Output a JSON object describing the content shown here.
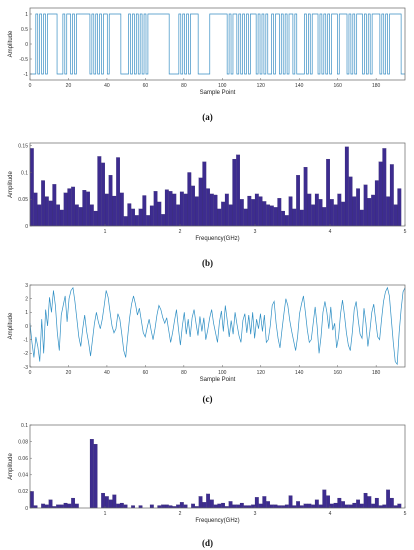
{
  "chart_data": [
    {
      "id": "a",
      "type": "line",
      "caption": "(a)",
      "xlabel": "Sample Point",
      "ylabel": "Amplitude",
      "xlim": [
        0,
        195
      ],
      "ylim": [
        -1.2,
        1.2
      ],
      "xticks": [
        0,
        20,
        40,
        60,
        80,
        100,
        120,
        140,
        160,
        180
      ],
      "yticks": [
        -1,
        -0.5,
        0,
        0.5,
        1
      ],
      "ytick_labels": [
        "-1",
        "-0.5",
        "0",
        "0.5",
        "1"
      ],
      "color": "#3a8fc4",
      "bits": [
        -1,
        -1,
        -1,
        1,
        -1,
        1,
        -1,
        1,
        -1,
        1,
        1,
        1,
        1,
        1,
        -1,
        -1,
        -1,
        1,
        -1,
        1,
        1,
        -1,
        1,
        -1,
        1,
        1,
        1,
        1,
        1,
        1,
        1,
        -1,
        1,
        -1,
        1,
        -1,
        1,
        -1,
        1,
        1,
        -1,
        1,
        1,
        1,
        1,
        1,
        1,
        -1,
        -1,
        -1,
        -1,
        1,
        -1,
        1,
        -1,
        1,
        -1,
        1,
        -1,
        1,
        -1,
        1,
        1,
        1,
        1,
        1,
        1,
        1,
        1,
        1,
        1,
        1,
        -1,
        -1,
        -1,
        -1,
        -1,
        1,
        -1,
        1,
        -1,
        1,
        -1,
        1,
        1,
        1,
        1,
        -1,
        -1,
        -1,
        -1,
        -1,
        -1,
        1,
        1,
        1,
        1,
        1,
        1,
        1,
        1,
        1,
        -1,
        1,
        -1,
        1,
        1,
        -1,
        1,
        -1,
        1,
        -1,
        1,
        -1,
        1,
        1,
        1,
        -1,
        1,
        -1,
        1,
        -1,
        1,
        -1,
        -1,
        1,
        -1,
        1,
        1,
        -1,
        1,
        -1,
        1,
        -1,
        1,
        1,
        -1,
        1,
        -1,
        -1,
        -1,
        -1,
        1,
        -1,
        1,
        -1,
        1,
        1,
        1,
        -1,
        1,
        -1,
        1,
        -1,
        1,
        -1,
        1,
        1,
        1,
        -1,
        1,
        1,
        1,
        1,
        -1,
        1,
        -1,
        1,
        -1,
        1,
        1,
        1,
        -1,
        1,
        -1,
        1,
        -1,
        1,
        1,
        1,
        1,
        -1,
        1,
        -1,
        1,
        -1,
        1,
        1,
        1,
        1,
        1,
        1,
        -1,
        -1
      ]
    },
    {
      "id": "b",
      "type": "bar",
      "caption": "(b)",
      "xlabel": "Frequency(GHz)",
      "ylabel": "Amplitude",
      "xlim": [
        0,
        5
      ],
      "ylim": [
        0,
        0.155
      ],
      "xticks": [
        1,
        2,
        3,
        4,
        5
      ],
      "yticks": [
        0,
        0.05,
        0.1,
        0.15
      ],
      "ytick_labels": [
        "0",
        "0.05",
        "0.1",
        "0.15"
      ],
      "color": "#3d2c8f",
      "x_start": 0.025,
      "x_step": 0.05,
      "values": [
        0.145,
        0.062,
        0.04,
        0.085,
        0.055,
        0.047,
        0.078,
        0.04,
        0.03,
        0.062,
        0.07,
        0.073,
        0.04,
        0.035,
        0.067,
        0.064,
        0.04,
        0.028,
        0.13,
        0.118,
        0.06,
        0.095,
        0.056,
        0.128,
        0.062,
        0.018,
        0.042,
        0.032,
        0.02,
        0.032,
        0.057,
        0.02,
        0.038,
        0.065,
        0.045,
        0.022,
        0.068,
        0.065,
        0.06,
        0.04,
        0.064,
        0.06,
        0.1,
        0.075,
        0.055,
        0.09,
        0.12,
        0.07,
        0.06,
        0.058,
        0.032,
        0.045,
        0.06,
        0.04,
        0.125,
        0.133,
        0.05,
        0.032,
        0.056,
        0.05,
        0.06,
        0.055,
        0.046,
        0.04,
        0.038,
        0.035,
        0.052,
        0.028,
        0.02,
        0.055,
        0.032,
        0.095,
        0.03,
        0.11,
        0.06,
        0.04,
        0.06,
        0.05,
        0.035,
        0.125,
        0.05,
        0.04,
        0.06,
        0.045,
        0.148,
        0.092,
        0.055,
        0.07,
        0.03,
        0.077,
        0.052,
        0.058,
        0.085,
        0.12,
        0.145,
        0.055,
        0.115,
        0.04,
        0.07
      ]
    },
    {
      "id": "c",
      "type": "line",
      "caption": "(c)",
      "xlabel": "Sample Point",
      "ylabel": "Amplitude",
      "xlim": [
        0,
        195
      ],
      "ylim": [
        -3,
        3
      ],
      "xticks": [
        0,
        20,
        40,
        60,
        80,
        100,
        120,
        140,
        160,
        180
      ],
      "yticks": [
        -3,
        -2,
        -1,
        0,
        1,
        2,
        3
      ],
      "ytick_labels": [
        "-3",
        "-2",
        "-1",
        "0",
        "1",
        "2",
        "3"
      ],
      "color": "#2f8fc4",
      "values": [
        0.2,
        -1.2,
        -2.3,
        -0.8,
        -1.5,
        -2.6,
        0.5,
        -2.0,
        1.2,
        0.0,
        2.1,
        1.0,
        2.6,
        1.5,
        -0.5,
        -1.8,
        0.8,
        1.5,
        2.2,
        0.3,
        2.0,
        2.6,
        2.8,
        1.8,
        0.5,
        -0.8,
        -1.5,
        -0.2,
        0.8,
        -0.4,
        -1.2,
        -2.2,
        -1.0,
        0.2,
        1.0,
        0.3,
        -0.2,
        0.5,
        1.5,
        2.6,
        2.1,
        1.0,
        0.0,
        -0.5,
        -0.2,
        0.9,
        0.5,
        -0.6,
        -1.8,
        -2.3,
        -0.8,
        0.6,
        1.6,
        2.2,
        1.6,
        0.8,
        1.3,
        0.4,
        -0.5,
        -0.8,
        -0.1,
        0.5,
        -0.3,
        -1.0,
        -0.2,
        0.8,
        1.5,
        1.2,
        0.6,
        0.2,
        0.6,
        -0.3,
        -1.2,
        -0.5,
        0.4,
        1.2,
        -0.2,
        -1.4,
        0.0,
        1.0,
        -0.6,
        0.5,
        -0.8,
        0.6,
        1.2,
        0.2,
        -0.7,
        0.7,
        -0.4,
        0.6,
        -1.0,
        -0.3,
        0.6,
        1.2,
        0.2,
        -0.5,
        -1.2,
        0.3,
        1.1,
        -0.4,
        1.5,
        0.4,
        -0.8,
        0.4,
        -0.6,
        1.0,
        0.1,
        -0.7,
        -1.2,
        0.4,
        0.9,
        -0.5,
        0.8,
        -0.6,
        1.0,
        -0.9,
        0.5,
        -0.2,
        0.9,
        -0.4,
        0.8,
        -1.2,
        -1.0,
        0.0,
        1.5,
        1.8,
        0.2,
        -0.9,
        -1.6,
        -0.3,
        0.9,
        2.0,
        1.5,
        0.4,
        -0.4,
        -1.1,
        -1.8,
        -0.8,
        0.9,
        1.6,
        2.2,
        1.0,
        -0.3,
        -1.2,
        -1.0,
        0.2,
        1.4,
        0.0,
        -2.0,
        -0.8,
        1.0,
        1.8,
        1.0,
        -0.2,
        1.4,
        -0.3,
        0.2,
        -1.6,
        -0.8,
        0.9,
        1.9,
        0.8,
        -0.5,
        -1.4,
        -1.8,
        -0.5,
        1.2,
        1.8,
        0.5,
        -0.6,
        -0.9,
        1.3,
        0.2,
        -1.5,
        -0.4,
        1.0,
        1.6,
        0.4,
        -0.8,
        -1.0,
        0.5,
        1.8,
        2.5,
        2.8,
        2.2,
        0.5,
        -1.2,
        -2.6,
        -2.8,
        -0.5,
        1.2,
        2.5,
        2.8
      ]
    },
    {
      "id": "d",
      "type": "bar",
      "caption": "(d)",
      "xlabel": "Frequency(GHz)",
      "ylabel": "Amplitude",
      "xlim": [
        0,
        5
      ],
      "ylim": [
        0,
        0.1
      ],
      "xticks": [
        1,
        2,
        3,
        4,
        5
      ],
      "yticks": [
        0,
        0.02,
        0.04,
        0.06,
        0.08,
        0.1
      ],
      "ytick_labels": [
        "0",
        "0.02",
        "0.04",
        "0.06",
        "0.08",
        "0.1"
      ],
      "color": "#3d2c8f",
      "x_start": 0.025,
      "x_step": 0.05,
      "values": [
        0.02,
        0.003,
        0,
        0.005,
        0.004,
        0.01,
        0.002,
        0.004,
        0.004,
        0.006,
        0.005,
        0.012,
        0.005,
        0,
        0,
        0,
        0.083,
        0.077,
        0,
        0.018,
        0.014,
        0.01,
        0.016,
        0.005,
        0.006,
        0.004,
        0,
        0.003,
        0,
        0.003,
        0,
        0,
        0.004,
        0,
        0.003,
        0.004,
        0.004,
        0.003,
        0.002,
        0.004,
        0.007,
        0.004,
        0,
        0.005,
        0.002,
        0.014,
        0.007,
        0.017,
        0.01,
        0.004,
        0.005,
        0.006,
        0.002,
        0.008,
        0.004,
        0.004,
        0.006,
        0.003,
        0.003,
        0.004,
        0.013,
        0.005,
        0.014,
        0.008,
        0.004,
        0.004,
        0.003,
        0.003,
        0.004,
        0.015,
        0.003,
        0.008,
        0.003,
        0.005,
        0.005,
        0.004,
        0.01,
        0.004,
        0.022,
        0.015,
        0.005,
        0.006,
        0.012,
        0.008,
        0.004,
        0.004,
        0.006,
        0.01,
        0.005,
        0.018,
        0.014,
        0.005,
        0.012,
        0.003,
        0.004,
        0.022,
        0.012,
        0.003,
        0.005
      ]
    }
  ]
}
